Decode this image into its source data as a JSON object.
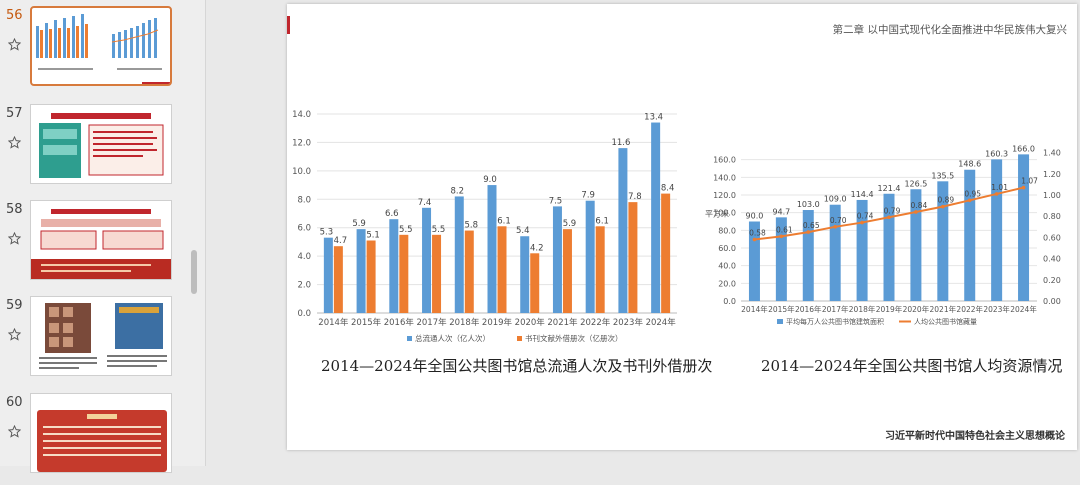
{
  "thumbnails": [
    {
      "number": "56",
      "active": true
    },
    {
      "number": "57",
      "active": false
    },
    {
      "number": "58",
      "active": false
    },
    {
      "number": "59",
      "active": false
    },
    {
      "number": "60",
      "active": false
    }
  ],
  "slide": {
    "chapter_title": "第二章 以中国式现代化全面推进中华民族伟大复兴",
    "footer_text": "习近平新时代中国特色社会主义思想概论",
    "caption_left": "2014—2024年全国公共图书馆总流通人次及书刊外借册次",
    "caption_right": "2014—2024年全国公共图书馆人均资源情况"
  },
  "colors": {
    "blue": "#5b9bd5",
    "orange": "#ed7d31",
    "accent": "#c0262d",
    "active_border": "#d77a3c"
  },
  "chart_data": [
    {
      "type": "bar",
      "categories": [
        "2014年",
        "2015年",
        "2016年",
        "2017年",
        "2018年",
        "2019年",
        "2020年",
        "2021年",
        "2022年",
        "2023年",
        "2024年"
      ],
      "series": [
        {
          "name": "总流通人次（亿人次）",
          "values": [
            5.3,
            5.9,
            6.6,
            7.4,
            8.2,
            9.0,
            5.4,
            7.5,
            7.9,
            11.6,
            13.4
          ],
          "color": "#5b9bd5"
        },
        {
          "name": "书刊文献外借册次（亿册次）",
          "values": [
            4.7,
            5.1,
            5.5,
            5.5,
            5.8,
            6.1,
            4.2,
            5.9,
            6.1,
            7.8,
            8.4
          ],
          "color": "#ed7d31"
        }
      ],
      "ylim": [
        0,
        14
      ],
      "yticks": [
        "0.0",
        "2.0",
        "4.0",
        "6.0",
        "8.0",
        "10.0",
        "12.0",
        "14.0"
      ],
      "legend": "bottom"
    },
    {
      "type": "bar",
      "categories": [
        "2014年",
        "2015年",
        "2016年",
        "2017年",
        "2018年",
        "2019年",
        "2020年",
        "2021年",
        "2022年",
        "2023年",
        "2024年"
      ],
      "series": [
        {
          "name": "平均每万人公共图书馆建筑面积",
          "values": [
            90.0,
            94.7,
            103.0,
            109.0,
            114.4,
            121.4,
            126.5,
            135.5,
            148.6,
            160.3,
            166.0
          ],
          "color": "#5b9bd5",
          "axis": "left"
        },
        {
          "name": "人均公共图书馆藏量",
          "type": "line",
          "values": [
            0.58,
            0.61,
            0.65,
            0.7,
            0.74,
            0.79,
            0.84,
            0.89,
            0.95,
            1.01,
            1.07
          ],
          "color": "#ed7d31",
          "axis": "right"
        }
      ],
      "ylabel": "平方米",
      "ylim": [
        0,
        180
      ],
      "yticks": [
        "0.0",
        "20.0",
        "40.0",
        "60.0",
        "80.0",
        "100.0",
        "120.0",
        "140.0",
        "160.0"
      ],
      "y2lim": [
        0,
        1.5
      ],
      "y2ticks": [
        "0.00",
        "0.20",
        "0.40",
        "0.60",
        "0.80",
        "1.00",
        "1.20",
        "1.40"
      ],
      "legend": "bottom"
    }
  ]
}
